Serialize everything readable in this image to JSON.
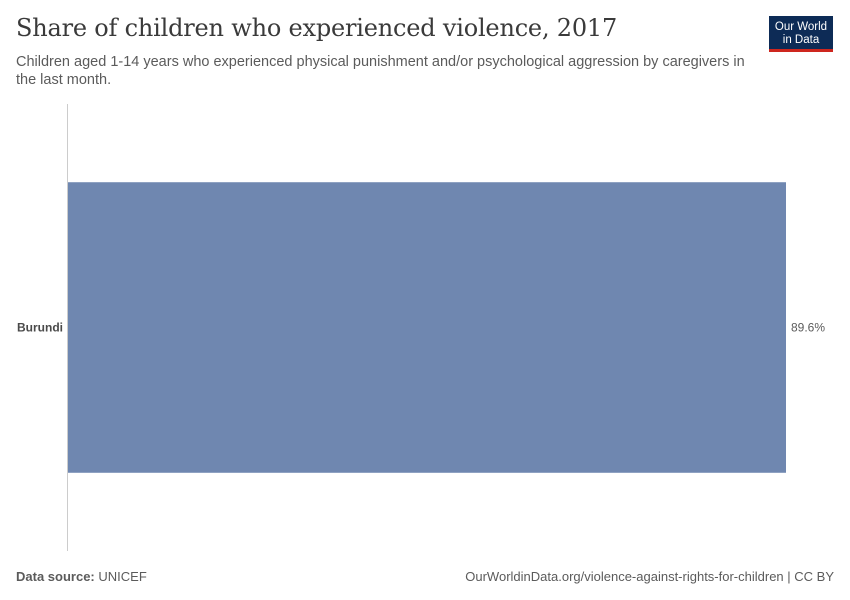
{
  "header": {
    "title": "Share of children who experienced violence, 2017",
    "subtitle": "Children aged 1-14 years who experienced physical punishment and/or psychological aggression by caregivers in the last month."
  },
  "logo": {
    "line1": "Our World",
    "line2": "in Data"
  },
  "chart_data": {
    "type": "bar",
    "orientation": "horizontal",
    "title": "Share of children who experienced violence, 2017",
    "categories": [
      "Burundi"
    ],
    "values": [
      89.6
    ],
    "value_labels": [
      "89.6%"
    ],
    "unit": "%",
    "xlim": [
      0,
      89.6
    ],
    "bar_color": "#6f87b0"
  },
  "footer": {
    "source_label": "Data source:",
    "source_value": "UNICEF",
    "url_license": "OurWorldinData.org/violence-against-rights-for-children | CC BY"
  },
  "colors": {
    "bar": "#6f87b0",
    "logo_bg": "#0d2b56",
    "logo_accent": "#ce261e",
    "axis": "#cccccc"
  }
}
